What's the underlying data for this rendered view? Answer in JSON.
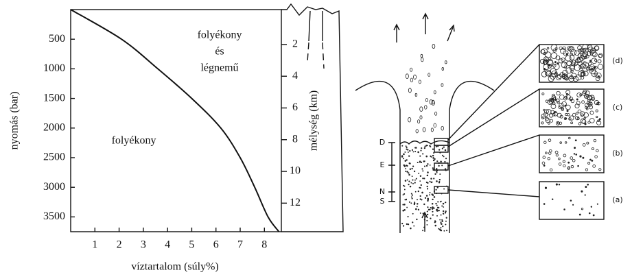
{
  "chart_data": {
    "type": "line",
    "x_label": "víztartalom (súly%)",
    "y_label": "nyomás (bar)",
    "y2_label": "mélység (km)",
    "annotations": [
      "folyékony",
      "folyékony",
      "és",
      "légnemű"
    ],
    "xlim": [
      0,
      8.7
    ],
    "xticks": [
      1,
      2,
      3,
      4,
      5,
      6,
      7,
      8
    ],
    "ylim": [
      0,
      3750
    ],
    "yticks": [
      500,
      1000,
      1500,
      2000,
      2500,
      3000,
      3500
    ],
    "y_inverted": true,
    "y2lim": [
      -0.2,
      13.8
    ],
    "y2ticks": [
      2,
      4,
      6,
      8,
      10,
      12
    ],
    "series": [
      {
        "color": "#111111",
        "x": [
          0,
          2.1,
          3.6,
          5.0,
          6.2,
          7.0,
          7.6,
          8.15,
          8.6
        ],
        "values": [
          0,
          500,
          1000,
          1500,
          2000,
          2500,
          3000,
          3500,
          3750
        ]
      }
    ]
  },
  "diagram": {
    "levels": [
      "D",
      "E",
      "N",
      "S"
    ],
    "samples": [
      "(a)",
      "(b)",
      "(c)",
      "(d)"
    ]
  }
}
